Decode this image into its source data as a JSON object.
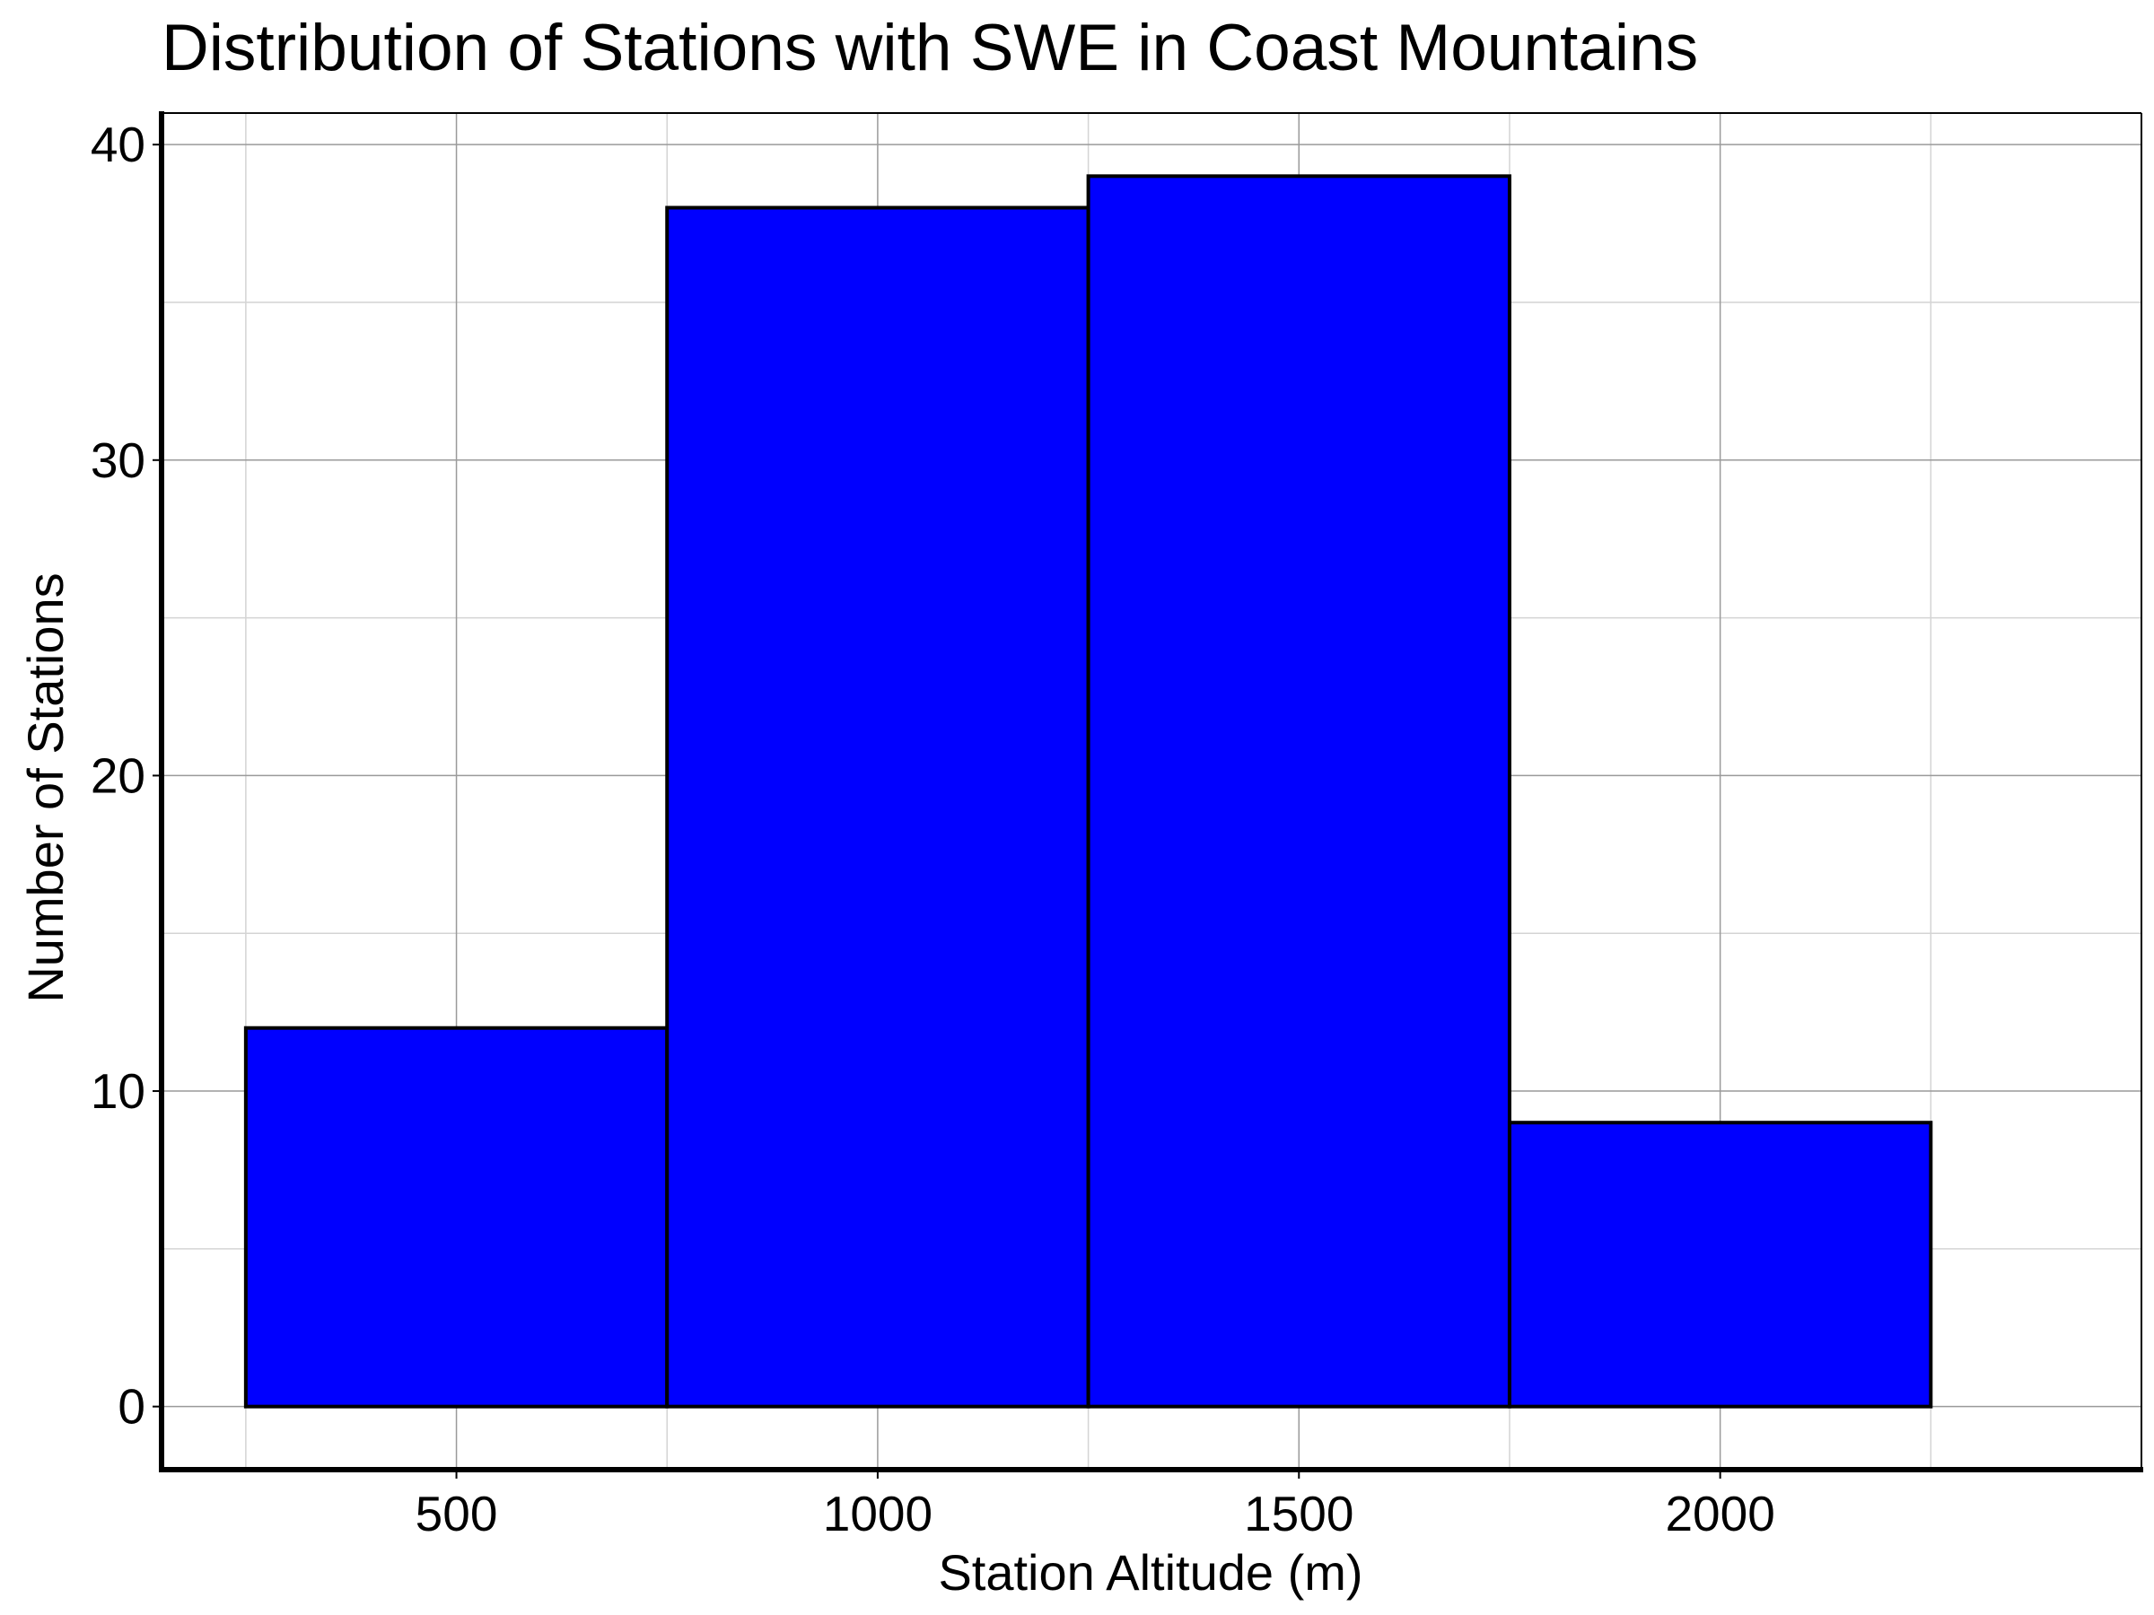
{
  "chart_data": {
    "type": "bar",
    "subtype": "histogram",
    "title": "Distribution of Stations with SWE in Coast Mountains",
    "xlabel": "Station Altitude (m)",
    "ylabel": "Number of Stations",
    "bins": [
      {
        "start": 250,
        "end": 750,
        "count": 12
      },
      {
        "start": 750,
        "end": 1250,
        "count": 38
      },
      {
        "start": 1250,
        "end": 1750,
        "count": 39
      },
      {
        "start": 1750,
        "end": 2250,
        "count": 9
      }
    ],
    "xlim": [
      150,
      2500
    ],
    "ylim": [
      -2,
      41
    ],
    "xticks": [
      500,
      1000,
      1500,
      2000
    ],
    "yticks": [
      0,
      10,
      20,
      30,
      40
    ],
    "x_minor_ticks": [
      250,
      750,
      1250,
      1750,
      2250
    ],
    "y_minor_ticks": [
      5,
      15,
      25,
      35
    ],
    "grid": true,
    "legend": "none",
    "colors": {
      "bar_fill": "#0000ff",
      "bar_edge": "#000000",
      "grid_major": "#9a9a9a",
      "grid_minor": "#d4d4d4"
    }
  }
}
